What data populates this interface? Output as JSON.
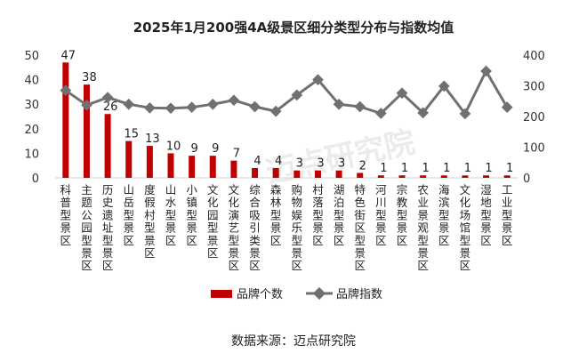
{
  "chart_data": {
    "type": "bar",
    "title": "2025年1月200强4A级景区细分类型分布与指数均值",
    "categories": [
      "科普型景区",
      "主题公园型景区",
      "历史遗址型景区",
      "山岳型景区",
      "度假村型景区",
      "山水型景区",
      "小镇型景区",
      "文化园型景区",
      "文化演艺型景区",
      "综合吸引类景区",
      "森林型景区",
      "购物娱乐型景区",
      "村落型景区",
      "湖泊型景区",
      "特色街区型景区",
      "河川型景区",
      "宗教型景区",
      "农业景观型景区",
      "海滨型景区",
      "文化场馆型景区",
      "湿地型景区",
      "工业型景区"
    ],
    "series": [
      {
        "name": "品牌个数",
        "type": "bar",
        "axis": "left",
        "color": "#c00000",
        "values": [
          47,
          38,
          26,
          15,
          13,
          10,
          9,
          9,
          7,
          4,
          4,
          3,
          3,
          3,
          2,
          1,
          1,
          1,
          1,
          1,
          1,
          1
        ]
      },
      {
        "name": "品牌指数",
        "type": "line",
        "axis": "right",
        "color": "#707070",
        "values": [
          285,
          237,
          262,
          240,
          228,
          227,
          230,
          240,
          253,
          232,
          217,
          270,
          320,
          240,
          232,
          210,
          276,
          212,
          299,
          209,
          348,
          230
        ]
      }
    ],
    "y_left": {
      "min": 0,
      "max": 50,
      "ticks": [
        0,
        10,
        20,
        30,
        40,
        50
      ]
    },
    "y_right": {
      "min": 0,
      "max": 400,
      "ticks": [
        0,
        100,
        200,
        300,
        400
      ]
    },
    "legend_position": "bottom",
    "grid": false
  },
  "source": "数据来源：迈点研究院",
  "watermark": "迈点研究院"
}
